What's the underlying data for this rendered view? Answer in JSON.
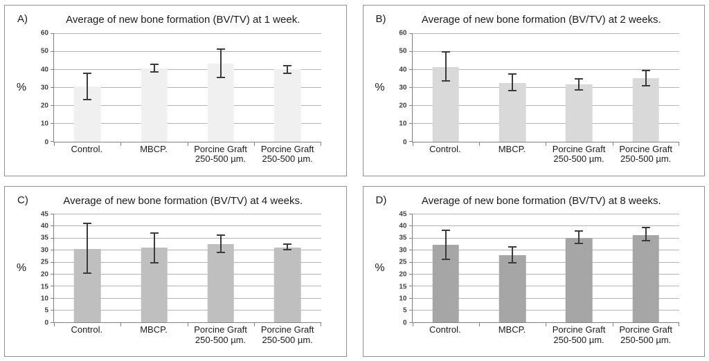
{
  "figure": {
    "background": "#ffffff",
    "panel_border_color": "#8f8f8f",
    "grid_color": "#b3b3b3",
    "axis_color": "#808080",
    "error_bar_color": "#3a3a3a",
    "text_color": "#1a1a1a"
  },
  "chart_data": [
    {
      "type": "bar",
      "panel_label": "A)",
      "title": "Average of new bone formation (BV/TV) at 1 week.",
      "ylabel": "%",
      "ylim": [
        0,
        60
      ],
      "yticks": [
        0,
        10,
        20,
        30,
        40,
        50,
        60
      ],
      "categories": [
        "Control.",
        "MBCP.",
        "Porcine Graft\n250-500 µm.",
        "Porcine Graft\n250-500 µm."
      ],
      "values": [
        30.5,
        40.5,
        43.0,
        40.0
      ],
      "error_low": [
        23.0,
        38.0,
        35.2,
        37.4
      ],
      "error_high": [
        38.0,
        43.3,
        51.6,
        42.5
      ],
      "bar_color": "#f0f0f0",
      "grid_on": true,
      "legend": null
    },
    {
      "type": "bar",
      "panel_label": "B)",
      "title": "Average of new bone formation (BV/TV) at 2 weeks.",
      "ylabel": "%",
      "ylim": [
        0,
        60
      ],
      "yticks": [
        0,
        10,
        20,
        30,
        40,
        50,
        60
      ],
      "categories": [
        "Control.",
        "MBCP.",
        "Porcine Graft\n250-500 µm.",
        "Porcine Graft\n250-500 µm."
      ],
      "values": [
        41.3,
        32.5,
        31.5,
        35.0
      ],
      "error_low": [
        33.0,
        27.8,
        28.2,
        30.5
      ],
      "error_high": [
        50.2,
        37.7,
        35.2,
        39.7
      ],
      "bar_color": "#d9d9d9",
      "grid_on": true,
      "legend": null
    },
    {
      "type": "bar",
      "panel_label": "C)",
      "title": "Average of new bone formation (BV/TV) at 4 weeks.",
      "ylabel": "%",
      "ylim": [
        0,
        45
      ],
      "yticks": [
        0,
        5,
        10,
        15,
        20,
        25,
        30,
        35,
        40,
        45
      ],
      "categories": [
        "Control.",
        "MBCP.",
        "Porcine Graft\n250-500 µm.",
        "Porcine Graft\n250-500 µm."
      ],
      "values": [
        30.5,
        31.0,
        32.5,
        31.0
      ],
      "error_low": [
        20.0,
        24.3,
        28.8,
        29.8
      ],
      "error_high": [
        41.3,
        37.5,
        36.5,
        32.7
      ],
      "bar_color": "#bfbfbf",
      "grid_on": true,
      "legend": null
    },
    {
      "type": "bar",
      "panel_label": "D)",
      "title": "Average of new bone formation (BV/TV) at 8 weeks.",
      "ylabel": "%",
      "ylim": [
        0,
        45
      ],
      "yticks": [
        0,
        5,
        10,
        15,
        20,
        25,
        30,
        35,
        40,
        45
      ],
      "categories": [
        "Control.",
        "MBCP.",
        "Porcine Graft\n250-500 µm.",
        "Porcine Graft\n250-500 µm."
      ],
      "values": [
        32.2,
        27.9,
        35.0,
        36.3
      ],
      "error_low": [
        26.0,
        24.3,
        32.5,
        33.7
      ],
      "error_high": [
        38.5,
        31.7,
        38.3,
        39.6
      ],
      "bar_color": "#a6a6a6",
      "grid_on": true,
      "legend": null
    }
  ]
}
